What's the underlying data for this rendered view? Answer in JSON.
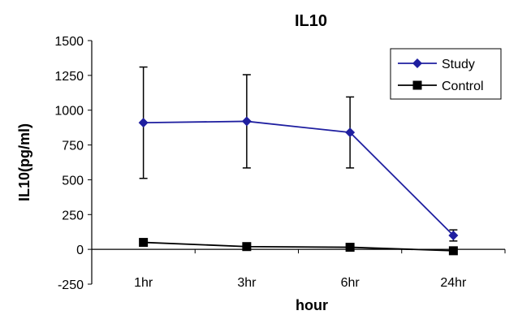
{
  "chart_data": {
    "type": "line",
    "title": "IL10",
    "xlabel": "hour",
    "ylabel": "IL10(pg/ml)",
    "categories": [
      "1hr",
      "3hr",
      "6hr",
      "24hr"
    ],
    "ylim": [
      -250,
      1500
    ],
    "yticks": [
      -250,
      0,
      250,
      500,
      750,
      1000,
      1250,
      1500
    ],
    "yticks_labels": [
      "-250",
      "0",
      "250",
      "500",
      "750",
      "1000",
      "1250",
      "1500"
    ],
    "grid": false,
    "legend_position": "top-right",
    "series": [
      {
        "name": "Study",
        "values": [
          910,
          920,
          840,
          100
        ],
        "error": [
          400,
          335,
          255,
          40
        ],
        "color": "#1f1fa0",
        "marker": "diamond"
      },
      {
        "name": "Control",
        "values": [
          50,
          20,
          15,
          -10
        ],
        "error": [
          25,
          15,
          15,
          10
        ],
        "color": "#000000",
        "marker": "square"
      }
    ]
  }
}
